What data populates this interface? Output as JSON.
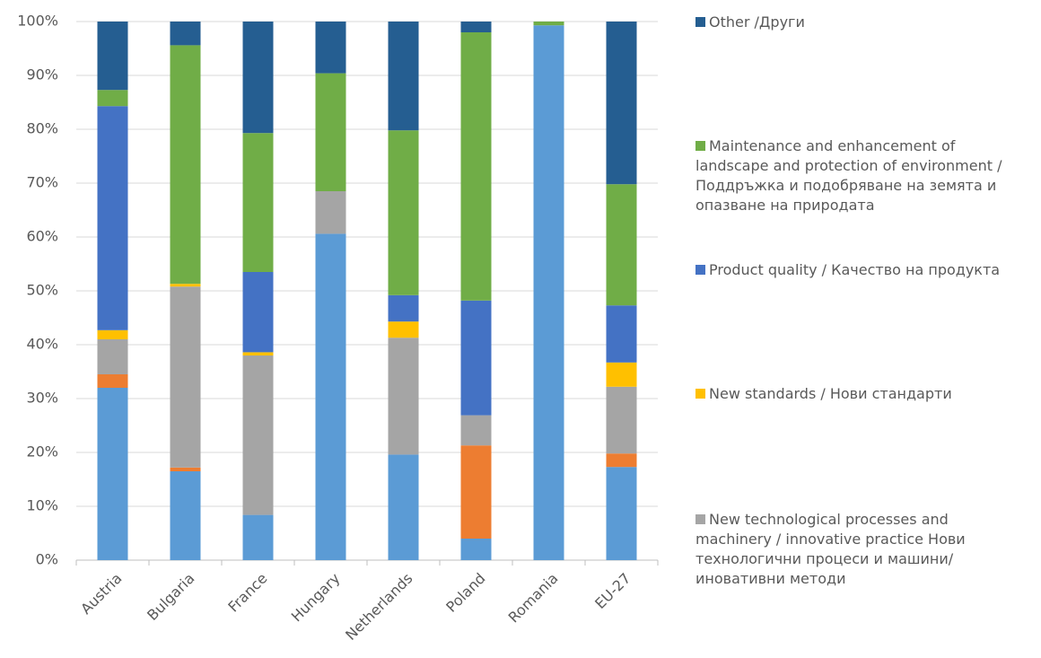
{
  "chart_data": {
    "type": "stacked_bar",
    "categories": [
      "Austria",
      "Bulgaria",
      "France",
      "Hungary",
      "Netherlands",
      "Poland",
      "Romania",
      "EU-27"
    ],
    "series": [
      {
        "color": "#5b9bd5",
        "values": [
          32,
          16.5,
          8.4,
          60.6,
          19.6,
          4,
          99.3,
          17.3
        ]
      },
      {
        "color": "#ed7d31",
        "values": [
          2.5,
          0.7,
          0,
          0,
          0,
          17.3,
          0,
          2.5
        ]
      },
      {
        "name": "New technological processes and machinery / innovative practice Нови технологични процеси и машини/ иновативни методи",
        "color": "#a5a5a5",
        "values": [
          6.5,
          33.6,
          29.6,
          7.9,
          21.7,
          5.6,
          0,
          12.4
        ]
      },
      {
        "name": "New standards / Нови стандарти",
        "color": "#ffc000",
        "values": [
          1.7,
          0.5,
          0.6,
          0,
          3,
          0,
          0,
          4.5
        ]
      },
      {
        "name": "Product quality / Качество на продукта",
        "color": "#4472c4",
        "values": [
          41.6,
          0,
          14.9,
          0,
          4.9,
          21.3,
          0,
          10.6
        ]
      },
      {
        "name": "Maintenance and enhancement of landscape and protection of environment / Поддръжка и подобряване на земята и опазване на природата",
        "color": "#70ad47",
        "values": [
          3,
          44.3,
          25.8,
          21.9,
          30.6,
          49.8,
          0.7,
          22.5
        ]
      },
      {
        "name": "Other /Други",
        "color": "#255e91",
        "values": [
          12.7,
          4.4,
          20.7,
          9.6,
          20.2,
          2,
          0,
          30.2
        ]
      }
    ],
    "ylim": [
      0,
      100
    ],
    "yticks": [
      {
        "value": 0,
        "label": "0%"
      },
      {
        "value": 10,
        "label": "10%"
      },
      {
        "value": 20,
        "label": "20%"
      },
      {
        "value": 30,
        "label": "30%"
      },
      {
        "value": 40,
        "label": "40%"
      },
      {
        "value": 50,
        "label": "50%"
      },
      {
        "value": 60,
        "label": "60%"
      },
      {
        "value": 70,
        "label": "70%"
      },
      {
        "value": 80,
        "label": "80%"
      },
      {
        "value": 90,
        "label": "90%"
      },
      {
        "value": 100,
        "label": "100%"
      }
    ],
    "grid": true,
    "legend": "right"
  }
}
